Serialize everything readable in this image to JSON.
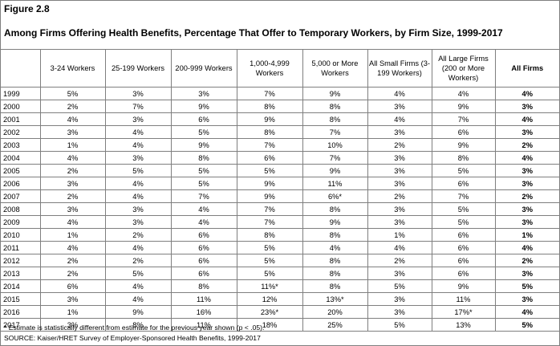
{
  "figure": {
    "label": "Figure 2.8",
    "title": "Among Firms Offering Health Benefits, Percentage That Offer to Temporary Workers, by Firm Size, 1999-2017"
  },
  "columns": [
    "",
    "3-24 Workers",
    "25-199 Workers",
    "200-999 Workers",
    "1,000-4,999 Workers",
    "5,000 or More Workers",
    "All Small Firms (3-199 Workers)",
    "All Large Firms (200 or More Workers)",
    "All Firms"
  ],
  "rows": [
    [
      "1999",
      "5%",
      "3%",
      "3%",
      "7%",
      "9%",
      "4%",
      "4%",
      "4%"
    ],
    [
      "2000",
      "2%",
      "7%",
      "9%",
      "8%",
      "8%",
      "3%",
      "9%",
      "3%"
    ],
    [
      "2001",
      "4%",
      "3%",
      "6%",
      "9%",
      "8%",
      "4%",
      "7%",
      "4%"
    ],
    [
      "2002",
      "3%",
      "4%",
      "5%",
      "8%",
      "7%",
      "3%",
      "6%",
      "3%"
    ],
    [
      "2003",
      "1%",
      "4%",
      "9%",
      "7%",
      "10%",
      "2%",
      "9%",
      "2%"
    ],
    [
      "2004",
      "4%",
      "3%",
      "8%",
      "6%",
      "7%",
      "3%",
      "8%",
      "4%"
    ],
    [
      "2005",
      "2%",
      "5%",
      "5%",
      "5%",
      "9%",
      "3%",
      "5%",
      "3%"
    ],
    [
      "2006",
      "3%",
      "4%",
      "5%",
      "9%",
      "11%",
      "3%",
      "6%",
      "3%"
    ],
    [
      "2007",
      "2%",
      "4%",
      "7%",
      "9%",
      "6%*",
      "2%",
      "7%",
      "2%"
    ],
    [
      "2008",
      "3%",
      "3%",
      "4%",
      "7%",
      "8%",
      "3%",
      "5%",
      "3%"
    ],
    [
      "2009",
      "4%",
      "3%",
      "4%",
      "7%",
      "9%",
      "3%",
      "5%",
      "3%"
    ],
    [
      "2010",
      "1%",
      "2%",
      "6%",
      "8%",
      "8%",
      "1%",
      "6%",
      "1%"
    ],
    [
      "2011",
      "4%",
      "4%",
      "6%",
      "5%",
      "4%",
      "4%",
      "6%",
      "4%"
    ],
    [
      "2012",
      "2%",
      "2%",
      "6%",
      "5%",
      "8%",
      "2%",
      "6%",
      "2%"
    ],
    [
      "2013",
      "2%",
      "5%",
      "6%",
      "5%",
      "8%",
      "3%",
      "6%",
      "3%"
    ],
    [
      "2014",
      "6%",
      "4%",
      "8%",
      "11%*",
      "8%",
      "5%",
      "9%",
      "5%"
    ],
    [
      "2015",
      "3%",
      "4%",
      "11%",
      "12%",
      "13%*",
      "3%",
      "11%",
      "3%"
    ],
    [
      "2016",
      "1%",
      "9%",
      "16%",
      "23%*",
      "20%",
      "3%",
      "17%*",
      "4%"
    ],
    [
      "2017",
      "3%",
      "8%",
      "11%",
      "18%",
      "25%",
      "5%",
      "13%",
      "5%"
    ]
  ],
  "notes": {
    "footnote": "* Estimate is statistically different from estimate for the previous year shown (p < .05).",
    "source": "SOURCE: Kaiser/HRET Survey of Employer-Sponsored Health Benefits, 1999-2017"
  }
}
